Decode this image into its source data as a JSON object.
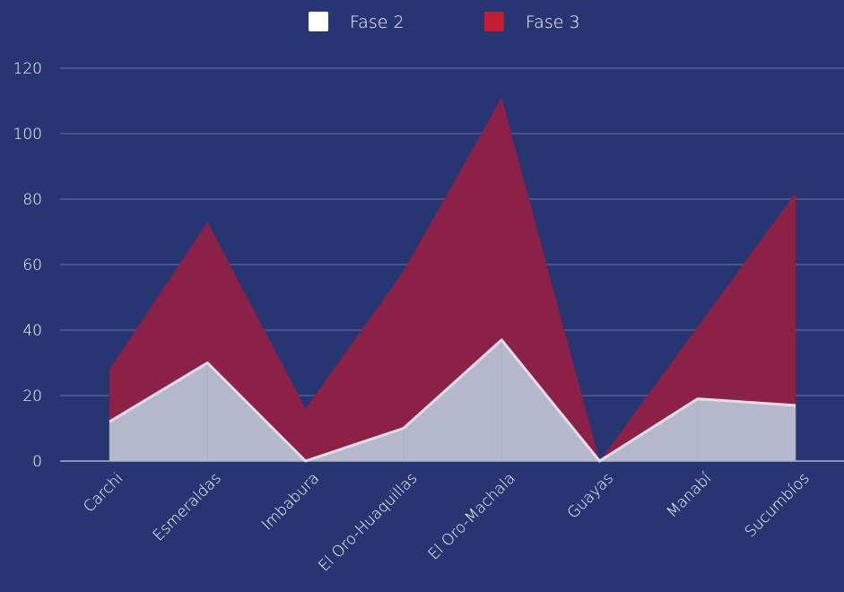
{
  "chart_data": {
    "type": "area",
    "categories": [
      "Carchi",
      "Esmeraldas",
      "Imbabura",
      "El Oro-Huaquillas",
      "El Oro-Machala",
      "Guayas",
      "Manabí",
      "Sucumbíos"
    ],
    "series": [
      {
        "name": "Fase 2",
        "values": [
          12,
          30,
          0,
          10,
          37,
          0,
          19,
          17
        ]
      },
      {
        "name": "Fase 3",
        "values": [
          16,
          43,
          16,
          48,
          74,
          0,
          22,
          65
        ]
      }
    ],
    "stacked": true,
    "ylim": [
      0,
      120
    ],
    "yticks": [
      0,
      20,
      40,
      60,
      80,
      100,
      120
    ],
    "grid": true,
    "legend_position": "top-center",
    "title": "",
    "xlabel": "",
    "ylabel": ""
  },
  "colors": {
    "background": "#273572",
    "grid": "#5b6697",
    "fase2_fill": "#b5b8cc",
    "fase2_line": "#e8dce6",
    "fase3_fill": "#8b2146",
    "legend_fase2": "#ffffff",
    "legend_fase3": "#c41c35"
  }
}
